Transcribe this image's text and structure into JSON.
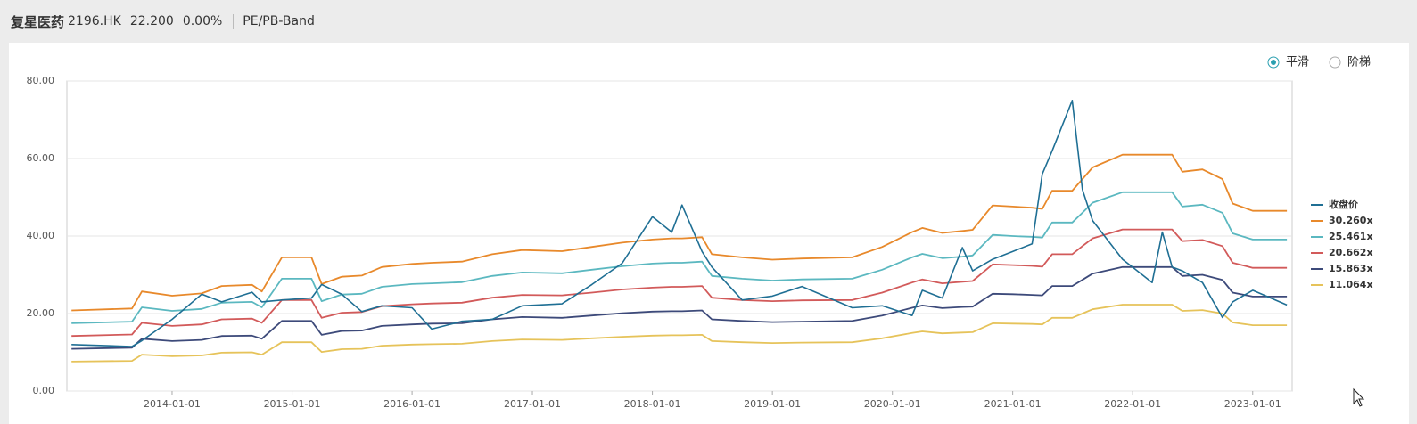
{
  "header": {
    "name": "复星医药",
    "code": "2196.HK",
    "price": "22.200",
    "change": "0.00%",
    "tab": "PE/PB-Band"
  },
  "controls": [
    "平滑",
    "阶梯"
  ],
  "chart_data": {
    "type": "line",
    "x": [
      "2013-03-01",
      "2013-09-01",
      "2013-10-01",
      "2014-01-01",
      "2014-04-01",
      "2014-06-01",
      "2014-09-01",
      "2014-10-01",
      "2014-12-01",
      "2015-03-01",
      "2015-04-01",
      "2015-06-01",
      "2015-08-01",
      "2015-10-01",
      "2016-01-01",
      "2016-03-01",
      "2016-06-01",
      "2016-09-01",
      "2016-12-01",
      "2017-04-01",
      "2017-07-01",
      "2017-10-01",
      "2018-01-01",
      "2018-03-01",
      "2018-04-01",
      "2018-06-01",
      "2018-07-01",
      "2018-10-01",
      "2019-01-01",
      "2019-04-01",
      "2019-09-01",
      "2019-12-01",
      "2020-03-01",
      "2020-04-01",
      "2020-06-01",
      "2020-08-01",
      "2020-09-01",
      "2020-11-01",
      "2021-01-01",
      "2021-03-01",
      "2021-04-01",
      "2021-05-01",
      "2021-07-01",
      "2021-08-01",
      "2021-09-01",
      "2021-12-01",
      "2022-03-01",
      "2022-04-01",
      "2022-05-01",
      "2022-06-01",
      "2022-08-01",
      "2022-10-01",
      "2022-11-01",
      "2023-01-01",
      "2023-04-15"
    ],
    "series": [
      {
        "name": "收盘价",
        "color": "#1f6f94",
        "values": [
          12.0,
          11.5,
          13.0,
          18.5,
          25.0,
          23.0,
          25.5,
          23.0,
          23.5,
          24.0,
          27.5,
          25.0,
          20.5,
          22.0,
          21.5,
          16.0,
          18.0,
          18.5,
          22.0,
          22.5,
          27.5,
          33.0,
          45.0,
          41.0,
          48.0,
          36.0,
          32.0,
          23.5,
          24.5,
          27.0,
          21.5,
          22.0,
          19.5,
          26.0,
          24.0,
          37.0,
          31.0,
          34.0,
          36.0,
          38.0,
          56.0,
          62.0,
          75.0,
          52.0,
          44.0,
          34.0,
          28.0,
          41.0,
          32.0,
          31.0,
          28.0,
          19.0,
          23.0,
          26.0,
          22.2
        ]
      },
      {
        "name": "30.260x",
        "color": "#e8892b",
        "values": [
          20.8,
          21.3,
          25.7,
          24.6,
          25.2,
          27.1,
          27.4,
          25.7,
          34.5,
          34.5,
          27.6,
          29.5,
          29.8,
          32.0,
          32.8,
          33.1,
          33.4,
          35.3,
          36.4,
          36.1,
          37.2,
          38.3,
          39.1,
          39.4,
          39.4,
          39.7,
          35.3,
          34.5,
          33.9,
          34.2,
          34.5,
          37.2,
          41.0,
          42.1,
          40.8,
          41.3,
          41.6,
          47.9,
          47.6,
          47.3,
          47.0,
          51.7,
          51.7,
          54.7,
          57.7,
          61.0,
          61.0,
          61.0,
          61.0,
          56.6,
          57.2,
          54.7,
          48.4,
          46.5,
          46.5
        ]
      },
      {
        "name": "25.461x",
        "color": "#5bb8c0",
        "values": [
          17.5,
          17.9,
          21.6,
          20.7,
          21.2,
          22.8,
          23.0,
          21.6,
          29.0,
          29.0,
          23.2,
          24.9,
          25.1,
          26.9,
          27.6,
          27.8,
          28.1,
          29.7,
          30.6,
          30.4,
          31.3,
          32.2,
          32.9,
          33.1,
          33.1,
          33.4,
          29.7,
          29.0,
          28.5,
          28.8,
          29.0,
          31.3,
          34.5,
          35.4,
          34.3,
          34.7,
          35.0,
          40.3,
          40.0,
          39.8,
          39.6,
          43.5,
          43.5,
          46.0,
          48.6,
          51.3,
          51.3,
          51.3,
          51.3,
          47.6,
          48.1,
          46.0,
          40.7,
          39.1,
          39.1
        ]
      },
      {
        "name": "20.662x",
        "color": "#d25a5a",
        "values": [
          14.2,
          14.6,
          17.6,
          16.8,
          17.2,
          18.5,
          18.7,
          17.6,
          23.5,
          23.5,
          18.9,
          20.2,
          20.4,
          21.9,
          22.4,
          22.6,
          22.8,
          24.1,
          24.8,
          24.7,
          25.4,
          26.2,
          26.7,
          26.9,
          26.9,
          27.1,
          24.1,
          23.5,
          23.2,
          23.4,
          23.5,
          25.4,
          28.0,
          28.8,
          27.8,
          28.2,
          28.4,
          32.7,
          32.5,
          32.3,
          32.1,
          35.3,
          35.3,
          37.4,
          39.4,
          41.7,
          41.7,
          41.7,
          41.7,
          38.7,
          39.0,
          37.4,
          33.1,
          31.8,
          31.8
        ]
      },
      {
        "name": "15.863x",
        "color": "#3d4a7a",
        "values": [
          10.9,
          11.2,
          13.5,
          12.9,
          13.2,
          14.2,
          14.3,
          13.5,
          18.1,
          18.1,
          14.5,
          15.5,
          15.6,
          16.8,
          17.2,
          17.4,
          17.5,
          18.5,
          19.1,
          18.9,
          19.5,
          20.1,
          20.5,
          20.6,
          20.6,
          20.8,
          18.5,
          18.1,
          17.8,
          17.9,
          18.1,
          19.5,
          21.5,
          22.1,
          21.4,
          21.7,
          21.8,
          25.1,
          25.0,
          24.8,
          24.7,
          27.1,
          27.1,
          28.7,
          30.3,
          32.0,
          32.0,
          32.0,
          32.0,
          29.7,
          30.0,
          28.7,
          25.4,
          24.4,
          24.4
        ]
      },
      {
        "name": "11.064x",
        "color": "#e6c35a",
        "values": [
          7.6,
          7.8,
          9.4,
          9.0,
          9.2,
          9.9,
          10.0,
          9.4,
          12.6,
          12.6,
          10.1,
          10.8,
          10.9,
          11.7,
          12.0,
          12.1,
          12.2,
          12.9,
          13.3,
          13.2,
          13.6,
          14.0,
          14.3,
          14.4,
          14.4,
          14.5,
          12.9,
          12.6,
          12.4,
          12.5,
          12.6,
          13.6,
          15.0,
          15.4,
          14.9,
          15.1,
          15.2,
          17.5,
          17.4,
          17.3,
          17.2,
          18.9,
          18.9,
          20.0,
          21.1,
          22.3,
          22.3,
          22.3,
          22.3,
          20.7,
          20.9,
          20.0,
          17.7,
          17.0,
          17.0
        ]
      }
    ],
    "xlim": [
      "2013-02-15",
      "2023-05-01"
    ],
    "xticks": [
      "2014-01-01",
      "2015-01-01",
      "2016-01-01",
      "2017-01-01",
      "2018-01-01",
      "2019-01-01",
      "2020-01-01",
      "2021-01-01",
      "2022-01-01",
      "2023-01-01"
    ],
    "ylim": [
      0,
      80
    ],
    "yticks": [
      {
        "value": 0,
        "label": "0.00"
      },
      {
        "value": 20,
        "label": "20.00"
      },
      {
        "value": 40,
        "label": "40.00"
      },
      {
        "value": 60,
        "label": "60.00"
      },
      {
        "value": 80,
        "label": "80.00"
      }
    ],
    "grid": true,
    "legend": "right"
  }
}
